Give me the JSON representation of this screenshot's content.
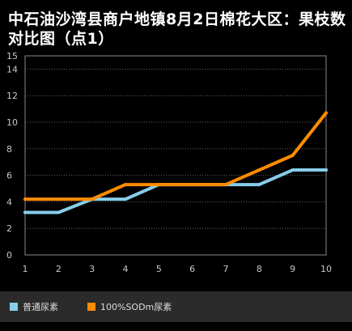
{
  "chart_data": {
    "type": "line",
    "title": "中石油沙湾县商户地镇8月2日棉花大区：果枝数对比图（点1）",
    "x": [
      1,
      2,
      3,
      4,
      5,
      6,
      7,
      8,
      9,
      10
    ],
    "ylim": [
      0,
      15
    ],
    "yticks": [
      0,
      2,
      4,
      6,
      8,
      10,
      12,
      14,
      15
    ],
    "grid": true,
    "legend_placement": "bottom",
    "series": [
      {
        "name": "普通尿素",
        "color": "#87ceeb",
        "values": [
          3.2,
          3.2,
          4.2,
          4.2,
          5.3,
          5.3,
          5.3,
          5.3,
          6.4,
          6.4
        ]
      },
      {
        "name": "100%SODm尿素",
        "color": "#ff8c00",
        "values": [
          4.2,
          4.2,
          4.2,
          5.3,
          5.3,
          5.3,
          5.3,
          6.4,
          7.5,
          10.7
        ]
      }
    ],
    "background": "#000000",
    "grid_color": "#666666"
  }
}
